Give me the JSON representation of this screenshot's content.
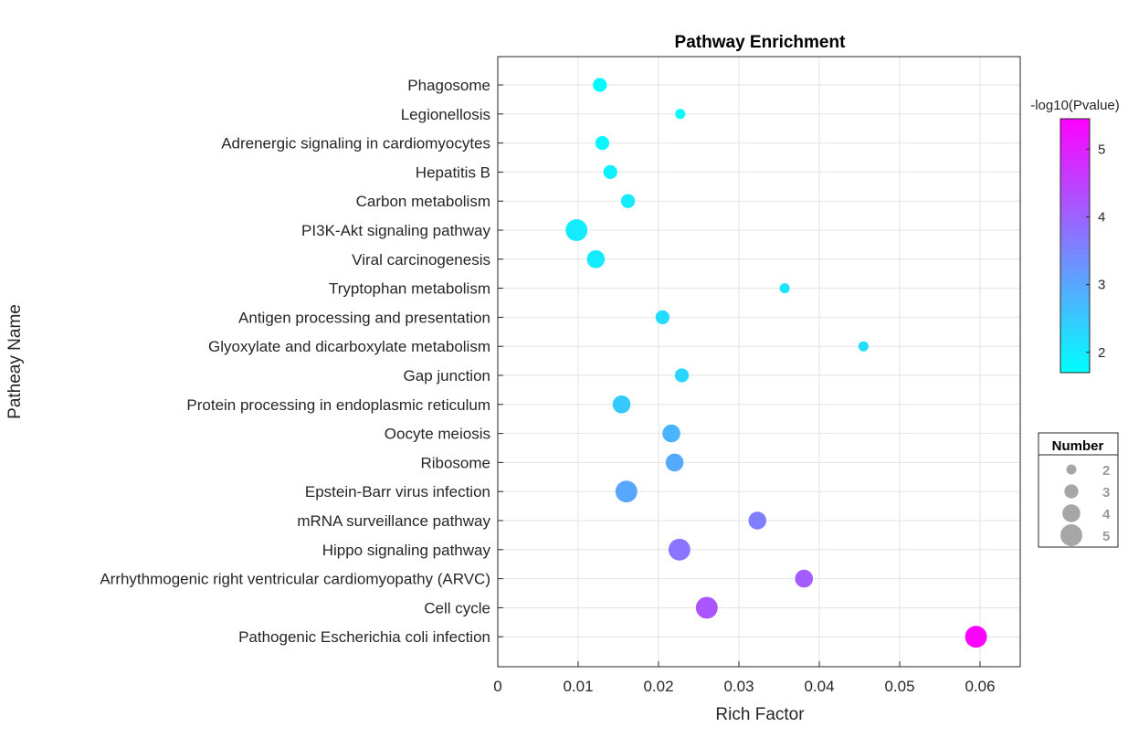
{
  "chart_data": {
    "type": "scatter",
    "title": "Pathway Enrichment",
    "xlabel": "Rich Factor",
    "ylabel": "Patheay Name",
    "xlim": [
      0,
      0.065
    ],
    "xticks": [
      0,
      0.01,
      0.02,
      0.03,
      0.04,
      0.05,
      0.06
    ],
    "xtick_labels": [
      "0",
      "0.01",
      "0.02",
      "0.03",
      "0.04",
      "0.05",
      "0.06"
    ],
    "grid": true,
    "colorbar": {
      "label": "-log10(Pvalue)",
      "range": [
        1.7,
        5.45
      ],
      "ticks": [
        2,
        3,
        4,
        5
      ],
      "tick_labels": [
        "2",
        "3",
        "4",
        "5"
      ],
      "color_low": "#00ffff",
      "color_high": "#ff00ff"
    },
    "size_legend": {
      "title": "Number",
      "placement": "right",
      "items": [
        {
          "label": "2",
          "value": 2
        },
        {
          "label": "3",
          "value": 3
        },
        {
          "label": "4",
          "value": 4
        },
        {
          "label": "5",
          "value": 5
        }
      ]
    },
    "points": [
      {
        "name": "Phagosome",
        "x": 0.0127,
        "logp": 1.8,
        "count": 3
      },
      {
        "name": "Legionellosis",
        "x": 0.0227,
        "logp": 1.75,
        "count": 2
      },
      {
        "name": "Adrenergic signaling in cardiomyocytes",
        "x": 0.013,
        "logp": 1.85,
        "count": 3
      },
      {
        "name": "Hepatitis B",
        "x": 0.014,
        "logp": 1.9,
        "count": 3
      },
      {
        "name": "Carbon metabolism",
        "x": 0.0162,
        "logp": 2.0,
        "count": 3
      },
      {
        "name": "PI3K-Akt signaling pathway",
        "x": 0.0098,
        "logp": 2.0,
        "count": 5
      },
      {
        "name": "Viral carcinogenesis",
        "x": 0.0122,
        "logp": 2.0,
        "count": 4
      },
      {
        "name": "Tryptophan metabolism",
        "x": 0.0357,
        "logp": 2.1,
        "count": 2
      },
      {
        "name": "Antigen processing and presentation",
        "x": 0.0205,
        "logp": 2.2,
        "count": 3
      },
      {
        "name": "Glyoxylate and dicarboxylate metabolism",
        "x": 0.0455,
        "logp": 2.2,
        "count": 2
      },
      {
        "name": "Gap junction",
        "x": 0.0229,
        "logp": 2.3,
        "count": 3
      },
      {
        "name": "Protein processing in endoplasmic reticulum",
        "x": 0.0154,
        "logp": 2.5,
        "count": 4
      },
      {
        "name": "Oocyte meiosis",
        "x": 0.0216,
        "logp": 2.8,
        "count": 4
      },
      {
        "name": "Ribosome",
        "x": 0.022,
        "logp": 2.95,
        "count": 4
      },
      {
        "name": "Epstein-Barr virus infection",
        "x": 0.016,
        "logp": 3.0,
        "count": 5
      },
      {
        "name": "mRNA surveillance pathway",
        "x": 0.0323,
        "logp": 3.6,
        "count": 4
      },
      {
        "name": "Hippo signaling pathway",
        "x": 0.0226,
        "logp": 3.75,
        "count": 5
      },
      {
        "name": "Arrhythmogenic right ventricular cardiomyopathy (ARVC)",
        "x": 0.0381,
        "logp": 4.1,
        "count": 4
      },
      {
        "name": "Cell cycle",
        "x": 0.026,
        "logp": 4.2,
        "count": 5
      },
      {
        "name": "Pathogenic Escherichia coli infection",
        "x": 0.0595,
        "logp": 5.4,
        "count": 5
      }
    ]
  }
}
